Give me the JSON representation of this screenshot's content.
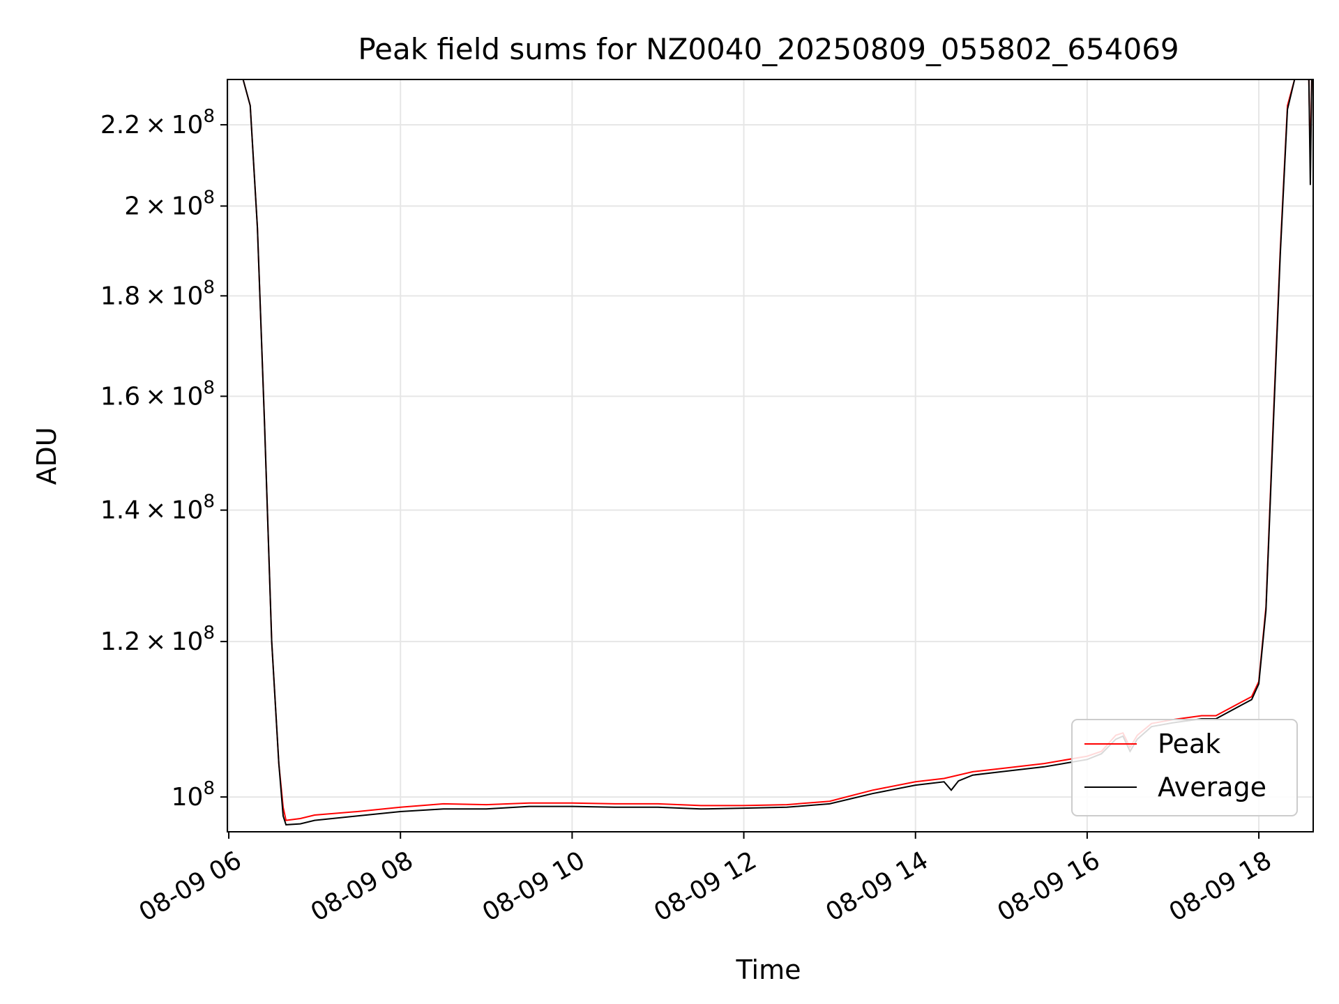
{
  "chart_data": {
    "type": "line",
    "title": "Peak field sums for NZ0040_20250809_055802_654069",
    "xlabel": "Time",
    "ylabel": "ADU",
    "x_scale": "time",
    "y_scale": "log",
    "xlim": [
      "2025-08-09 05:59",
      "2025-08-09 18:38"
    ],
    "ylim": [
      96000000,
      232000000
    ],
    "grid": true,
    "legend_position": "lower right",
    "x_ticks": [
      {
        "value": "2025-08-09 06:00",
        "label": "08-09 06"
      },
      {
        "value": "2025-08-09 08:00",
        "label": "08-09 08"
      },
      {
        "value": "2025-08-09 10:00",
        "label": "08-09 10"
      },
      {
        "value": "2025-08-09 12:00",
        "label": "08-09 12"
      },
      {
        "value": "2025-08-09 14:00",
        "label": "08-09 14"
      },
      {
        "value": "2025-08-09 16:00",
        "label": "08-09 16"
      },
      {
        "value": "2025-08-09 18:00",
        "label": "08-09 18"
      }
    ],
    "y_ticks": [
      {
        "value": 100000000,
        "mant": "",
        "exp": "8"
      },
      {
        "value": 120000000,
        "mant": "1.2",
        "exp": "8"
      },
      {
        "value": 140000000,
        "mant": "1.4",
        "exp": "8"
      },
      {
        "value": 160000000,
        "mant": "1.6",
        "exp": "8"
      },
      {
        "value": 180000000,
        "mant": "1.8",
        "exp": "8"
      },
      {
        "value": 200000000,
        "mant": "2",
        "exp": "8"
      },
      {
        "value": 220000000,
        "mant": "2.2",
        "exp": "8"
      }
    ],
    "series": [
      {
        "name": "Peak",
        "color": "#ff0000",
        "points": [
          [
            "2025-08-09 05:59",
            232000000
          ],
          [
            "2025-08-09 06:10",
            232000000
          ],
          [
            "2025-08-09 06:15",
            225000000
          ],
          [
            "2025-08-09 06:20",
            195000000
          ],
          [
            "2025-08-09 06:25",
            155000000
          ],
          [
            "2025-08-09 06:30",
            120000000
          ],
          [
            "2025-08-09 06:35",
            104000000
          ],
          [
            "2025-08-09 06:38",
            98800000
          ],
          [
            "2025-08-09 06:40",
            97300000
          ],
          [
            "2025-08-09 06:50",
            97500000
          ],
          [
            "2025-08-09 07:00",
            97900000
          ],
          [
            "2025-08-09 07:30",
            98300000
          ],
          [
            "2025-08-09 08:00",
            98800000
          ],
          [
            "2025-08-09 08:30",
            99200000
          ],
          [
            "2025-08-09 09:00",
            99100000
          ],
          [
            "2025-08-09 09:30",
            99300000
          ],
          [
            "2025-08-09 10:00",
            99300000
          ],
          [
            "2025-08-09 10:30",
            99200000
          ],
          [
            "2025-08-09 11:00",
            99200000
          ],
          [
            "2025-08-09 11:30",
            99000000
          ],
          [
            "2025-08-09 12:00",
            99000000
          ],
          [
            "2025-08-09 12:30",
            99100000
          ],
          [
            "2025-08-09 13:00",
            99500000
          ],
          [
            "2025-08-09 13:30",
            100800000
          ],
          [
            "2025-08-09 14:00",
            101800000
          ],
          [
            "2025-08-09 14:20",
            102200000
          ],
          [
            "2025-08-09 14:40",
            103000000
          ],
          [
            "2025-08-09 15:00",
            103400000
          ],
          [
            "2025-08-09 15:30",
            104000000
          ],
          [
            "2025-08-09 16:00",
            104900000
          ],
          [
            "2025-08-09 16:10",
            105500000
          ],
          [
            "2025-08-09 16:20",
            107500000
          ],
          [
            "2025-08-09 16:25",
            107800000
          ],
          [
            "2025-08-09 16:30",
            106000000
          ],
          [
            "2025-08-09 16:35",
            107500000
          ],
          [
            "2025-08-09 16:45",
            109000000
          ],
          [
            "2025-08-09 17:00",
            109500000
          ],
          [
            "2025-08-09 17:20",
            110000000
          ],
          [
            "2025-08-09 17:30",
            110000000
          ],
          [
            "2025-08-09 17:45",
            111500000
          ],
          [
            "2025-08-09 17:55",
            112500000
          ],
          [
            "2025-08-09 18:00",
            114500000
          ],
          [
            "2025-08-09 18:05",
            125000000
          ],
          [
            "2025-08-09 18:10",
            155000000
          ],
          [
            "2025-08-09 18:15",
            190000000
          ],
          [
            "2025-08-09 18:20",
            225000000
          ],
          [
            "2025-08-09 18:25",
            232000000
          ],
          [
            "2025-08-09 18:35",
            232000000
          ],
          [
            "2025-08-09 18:36",
            210000000
          ],
          [
            "2025-08-09 18:37",
            232000000
          ],
          [
            "2025-08-09 18:38",
            232000000
          ]
        ]
      },
      {
        "name": "Average",
        "color": "#000000",
        "points": [
          [
            "2025-08-09 05:59",
            232000000
          ],
          [
            "2025-08-09 06:10",
            232000000
          ],
          [
            "2025-08-09 06:15",
            225000000
          ],
          [
            "2025-08-09 06:20",
            195000000
          ],
          [
            "2025-08-09 06:25",
            155000000
          ],
          [
            "2025-08-09 06:30",
            120000000
          ],
          [
            "2025-08-09 06:35",
            104000000
          ],
          [
            "2025-08-09 06:38",
            97800000
          ],
          [
            "2025-08-09 06:40",
            96800000
          ],
          [
            "2025-08-09 06:50",
            96900000
          ],
          [
            "2025-08-09 07:00",
            97300000
          ],
          [
            "2025-08-09 07:30",
            97800000
          ],
          [
            "2025-08-09 08:00",
            98300000
          ],
          [
            "2025-08-09 08:30",
            98600000
          ],
          [
            "2025-08-09 09:00",
            98600000
          ],
          [
            "2025-08-09 09:30",
            98900000
          ],
          [
            "2025-08-09 10:00",
            98900000
          ],
          [
            "2025-08-09 10:30",
            98800000
          ],
          [
            "2025-08-09 11:00",
            98800000
          ],
          [
            "2025-08-09 11:30",
            98600000
          ],
          [
            "2025-08-09 12:00",
            98700000
          ],
          [
            "2025-08-09 12:30",
            98800000
          ],
          [
            "2025-08-09 13:00",
            99200000
          ],
          [
            "2025-08-09 13:30",
            100400000
          ],
          [
            "2025-08-09 14:00",
            101400000
          ],
          [
            "2025-08-09 14:20",
            101800000
          ],
          [
            "2025-08-09 14:25",
            100800000
          ],
          [
            "2025-08-09 14:30",
            101900000
          ],
          [
            "2025-08-09 14:40",
            102600000
          ],
          [
            "2025-08-09 15:00",
            103000000
          ],
          [
            "2025-08-09 15:30",
            103600000
          ],
          [
            "2025-08-09 16:00",
            104500000
          ],
          [
            "2025-08-09 16:10",
            105200000
          ],
          [
            "2025-08-09 16:20",
            107000000
          ],
          [
            "2025-08-09 16:25",
            107400000
          ],
          [
            "2025-08-09 16:30",
            105500000
          ],
          [
            "2025-08-09 16:35",
            107000000
          ],
          [
            "2025-08-09 16:45",
            108600000
          ],
          [
            "2025-08-09 17:00",
            109100000
          ],
          [
            "2025-08-09 17:20",
            109600000
          ],
          [
            "2025-08-09 17:30",
            109600000
          ],
          [
            "2025-08-09 17:45",
            111100000
          ],
          [
            "2025-08-09 17:55",
            112100000
          ],
          [
            "2025-08-09 18:00",
            114200000
          ],
          [
            "2025-08-09 18:05",
            124500000
          ],
          [
            "2025-08-09 18:10",
            154000000
          ],
          [
            "2025-08-09 18:15",
            189000000
          ],
          [
            "2025-08-09 18:20",
            224000000
          ],
          [
            "2025-08-09 18:25",
            232000000
          ],
          [
            "2025-08-09 18:35",
            232000000
          ],
          [
            "2025-08-09 18:36",
            205000000
          ],
          [
            "2025-08-09 18:37",
            232000000
          ],
          [
            "2025-08-09 18:38",
            232000000
          ]
        ]
      }
    ]
  }
}
